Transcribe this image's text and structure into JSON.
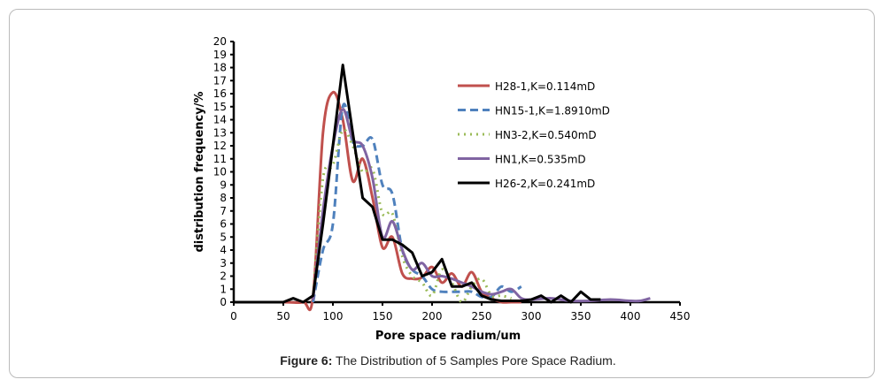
{
  "caption": {
    "label": "Figure 6:",
    "text": " The Distribution of 5 Samples Pore Space Radium."
  },
  "chart_data": {
    "type": "line",
    "title": "",
    "xlabel": "Pore space radium/um",
    "ylabel": "distribution frequency/%",
    "xlim": [
      0,
      450
    ],
    "ylim": [
      0,
      20
    ],
    "xticks": [
      0,
      50,
      100,
      150,
      200,
      250,
      300,
      350,
      400,
      450
    ],
    "yticks": [
      0,
      1,
      2,
      3,
      4,
      5,
      6,
      7,
      8,
      9,
      10,
      11,
      12,
      13,
      14,
      15,
      16,
      17,
      18,
      19,
      20
    ],
    "legend_position": "top-right",
    "series": [
      {
        "name": "H28-1,K=0.114mD",
        "color": "#c0504d",
        "style": "solid",
        "smooth": true,
        "x": [
          0,
          50,
          70,
          80,
          90,
          100,
          110,
          120,
          130,
          140,
          150,
          160,
          170,
          180,
          190,
          200,
          210,
          220,
          230,
          240,
          250,
          260,
          270,
          280,
          290
        ],
        "y": [
          0,
          0,
          0,
          0.5,
          13,
          16.1,
          14,
          9.3,
          11,
          8,
          4.2,
          5,
          2.2,
          1.8,
          1.9,
          2.7,
          1.5,
          2.2,
          1.2,
          2.3,
          0.8,
          0.3,
          0,
          0,
          0
        ]
      },
      {
        "name": "HN15-1,K=1.8910mD",
        "color": "#4f81bd",
        "style": "dashed",
        "smooth": true,
        "x": [
          80,
          90,
          100,
          110,
          120,
          130,
          140,
          150,
          160,
          170,
          180,
          190,
          200,
          210,
          220,
          230,
          240,
          250,
          260,
          270,
          280,
          290
        ],
        "y": [
          0,
          4,
          6,
          15,
          12.3,
          12,
          12.5,
          9,
          8.3,
          4,
          2.5,
          2,
          1,
          0.8,
          0.8,
          0.8,
          0.8,
          0.4,
          0.4,
          1.2,
          0.8,
          1.2
        ]
      },
      {
        "name": "HN3-2,K=0.540mD",
        "color": "#9bbb59",
        "style": "dotted",
        "smooth": true,
        "x": [
          80,
          90,
          100,
          110,
          120,
          130,
          140,
          150,
          160,
          170,
          180,
          190,
          200,
          210,
          220,
          230,
          240,
          250,
          260,
          270,
          280
        ],
        "y": [
          0.3,
          9.5,
          10.5,
          13.2,
          12,
          10,
          10.2,
          6.8,
          6.8,
          3.5,
          2,
          1.5,
          0.5,
          2.5,
          1.5,
          0,
          1.2,
          1.8,
          0.5,
          0.5,
          0.3
        ]
      },
      {
        "name": "HN1,K=0.535mD",
        "color": "#8064a2",
        "style": "solid",
        "smooth": true,
        "x": [
          80,
          90,
          100,
          110,
          120,
          130,
          140,
          150,
          160,
          170,
          180,
          190,
          200,
          210,
          220,
          230,
          240,
          250,
          260,
          270,
          280,
          290,
          300,
          320,
          340,
          360,
          380,
          400,
          410,
          420
        ],
        "y": [
          0.2,
          7,
          12,
          14.8,
          12.5,
          12,
          9.5,
          5,
          6.2,
          4,
          2.5,
          3,
          2,
          2,
          1.8,
          1.5,
          1.2,
          0.8,
          0.6,
          0.8,
          1,
          0.3,
          0.2,
          0.3,
          0.1,
          0.1,
          0.2,
          0.1,
          0.1,
          0.3
        ]
      },
      {
        "name": "H26-2,K=0.241mD",
        "color": "#000000",
        "style": "solid",
        "smooth": false,
        "x": [
          0,
          50,
          60,
          70,
          80,
          90,
          100,
          110,
          120,
          130,
          140,
          150,
          160,
          170,
          180,
          190,
          200,
          210,
          220,
          230,
          240,
          250,
          260,
          270,
          280,
          290,
          300,
          310,
          320,
          330,
          340,
          350,
          360,
          370
        ],
        "y": [
          0,
          0,
          0.3,
          0,
          0.5,
          6,
          12,
          18.2,
          13,
          8,
          7.3,
          4.8,
          4.8,
          4.4,
          3.8,
          2,
          2.3,
          3.3,
          1.2,
          1.2,
          1.5,
          0.5,
          0.2,
          0.1,
          0.1,
          0.1,
          0.2,
          0.5,
          0,
          0.5,
          0,
          0.8,
          0.2,
          0.2
        ]
      }
    ]
  }
}
